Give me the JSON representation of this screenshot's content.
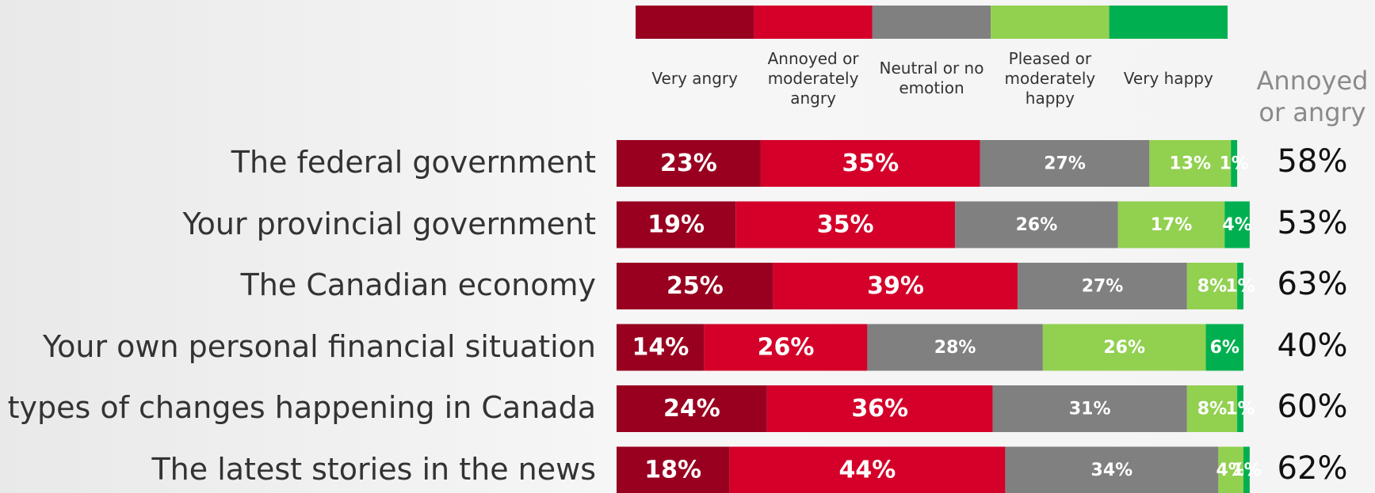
{
  "chart_data": {
    "type": "bar",
    "orientation": "horizontal",
    "stacked": true,
    "categories": [
      "The federal government",
      "Your provincial government",
      "The Canadian economy",
      "Your own personal financial situation",
      "The types of changes happening in Canada",
      "The latest stories in the news"
    ],
    "xlim": [
      0,
      100
    ],
    "series": [
      {
        "name": "Very angry",
        "color": "#990020",
        "values": [
          23,
          19,
          25,
          14,
          24,
          18
        ],
        "value_labels": [
          "23%",
          "19%",
          "25%",
          "14%",
          "24%",
          "18%"
        ]
      },
      {
        "name": "Annoyed or moderately angry",
        "color": "#d4002a",
        "values": [
          35,
          35,
          39,
          26,
          36,
          44
        ],
        "value_labels": [
          "35%",
          "35%",
          "39%",
          "26%",
          "36%",
          "44%"
        ]
      },
      {
        "name": "Neutral or no emotion",
        "color": "#808080",
        "values": [
          27,
          26,
          27,
          28,
          31,
          34
        ],
        "value_labels": [
          "27%",
          "26%",
          "27%",
          "28%",
          "31%",
          "34%"
        ]
      },
      {
        "name": "Pleased or moderately happy",
        "color": "#92d050",
        "values": [
          13,
          17,
          8,
          26,
          8,
          4
        ],
        "value_labels": [
          "13%",
          "17%",
          "8%",
          "26%",
          "8%",
          "4%"
        ]
      },
      {
        "name": "Very happy",
        "color": "#00b050",
        "values": [
          1,
          4,
          1,
          6,
          1,
          1
        ],
        "value_labels": [
          "1%",
          "4%",
          "1%",
          "6%",
          "1%",
          "1%"
        ]
      }
    ],
    "annoyed_or_angry": {
      "title": "Annoyed or angry",
      "values": [
        58,
        53,
        63,
        40,
        60,
        62
      ],
      "value_labels": [
        "58%",
        "53%",
        "63%",
        "40%",
        "60%",
        "62%"
      ]
    }
  }
}
